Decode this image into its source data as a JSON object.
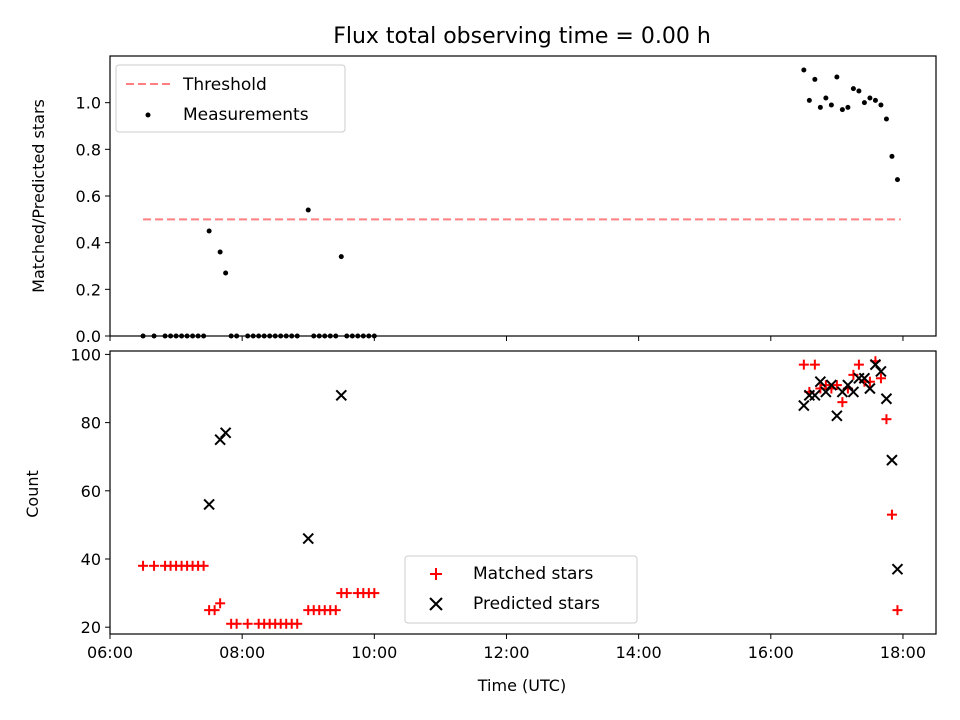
{
  "chart_data": [
    {
      "type": "scatter",
      "title": "Flux total observing time = 0.00 h",
      "xlabel": "",
      "ylabel": "Matched/Predicted stars",
      "xlim": [
        "06:00",
        "18:30"
      ],
      "ylim": [
        0,
        1.2
      ],
      "yticks": [
        "0.0",
        "0.2",
        "0.4",
        "0.6",
        "0.8",
        "1.0"
      ],
      "yticks_values": [
        0,
        0.2,
        0.4,
        0.6,
        0.8,
        1.0
      ],
      "legend_position": "top-left",
      "threshold": {
        "name": "Threshold",
        "value": 0.5,
        "x": [
          "06:30",
          "17:58"
        ],
        "color": "#ff8080",
        "style": "dashed"
      },
      "series": [
        {
          "name": "Measurements",
          "marker": "dot",
          "color": "#000000",
          "points": [
            [
              "06:30",
              0.0
            ],
            [
              "06:40",
              0.0
            ],
            [
              "06:50",
              0.0
            ],
            [
              "06:55",
              0.0
            ],
            [
              "07:00",
              0.0
            ],
            [
              "07:05",
              0.0
            ],
            [
              "07:10",
              0.0
            ],
            [
              "07:15",
              0.0
            ],
            [
              "07:20",
              0.0
            ],
            [
              "07:25",
              0.0
            ],
            [
              "07:30",
              0.45
            ],
            [
              "07:40",
              0.36
            ],
            [
              "07:45",
              0.27
            ],
            [
              "07:50",
              0.0
            ],
            [
              "07:55",
              0.0
            ],
            [
              "08:05",
              0.0
            ],
            [
              "08:10",
              0.0
            ],
            [
              "08:15",
              0.0
            ],
            [
              "08:20",
              0.0
            ],
            [
              "08:25",
              0.0
            ],
            [
              "08:30",
              0.0
            ],
            [
              "08:35",
              0.0
            ],
            [
              "08:40",
              0.0
            ],
            [
              "08:45",
              0.0
            ],
            [
              "08:50",
              0.0
            ],
            [
              "09:00",
              0.54
            ],
            [
              "09:05",
              0.0
            ],
            [
              "09:10",
              0.0
            ],
            [
              "09:15",
              0.0
            ],
            [
              "09:20",
              0.0
            ],
            [
              "09:25",
              0.0
            ],
            [
              "09:30",
              0.34
            ],
            [
              "09:35",
              0.0
            ],
            [
              "09:40",
              0.0
            ],
            [
              "09:45",
              0.0
            ],
            [
              "09:50",
              0.0
            ],
            [
              "09:55",
              0.0
            ],
            [
              "10:00",
              0.0
            ],
            [
              "16:30",
              1.14
            ],
            [
              "16:35",
              1.01
            ],
            [
              "16:40",
              1.1
            ],
            [
              "16:45",
              0.98
            ],
            [
              "16:50",
              1.02
            ],
            [
              "16:55",
              0.99
            ],
            [
              "17:00",
              1.11
            ],
            [
              "17:05",
              0.97
            ],
            [
              "17:10",
              0.98
            ],
            [
              "17:15",
              1.06
            ],
            [
              "17:20",
              1.05
            ],
            [
              "17:25",
              1.0
            ],
            [
              "17:30",
              1.02
            ],
            [
              "17:35",
              1.01
            ],
            [
              "17:40",
              0.99
            ],
            [
              "17:45",
              0.93
            ],
            [
              "17:50",
              0.77
            ],
            [
              "17:55",
              0.67
            ]
          ]
        }
      ]
    },
    {
      "type": "scatter",
      "title": "",
      "xlabel": "Time (UTC)",
      "ylabel": "Count",
      "xlim": [
        "06:00",
        "18:30"
      ],
      "ylim": [
        18,
        101
      ],
      "xticks": [
        "06:00",
        "08:00",
        "10:00",
        "12:00",
        "14:00",
        "16:00",
        "18:00"
      ],
      "yticks": [
        "20",
        "40",
        "60",
        "80",
        "100"
      ],
      "yticks_values": [
        20,
        40,
        60,
        80,
        100
      ],
      "legend_position": "lower-center",
      "series": [
        {
          "name": "Matched stars",
          "marker": "plus",
          "color": "#ff0000",
          "points": [
            [
              "06:30",
              38
            ],
            [
              "06:40",
              38
            ],
            [
              "06:50",
              38
            ],
            [
              "06:55",
              38
            ],
            [
              "07:00",
              38
            ],
            [
              "07:05",
              38
            ],
            [
              "07:10",
              38
            ],
            [
              "07:15",
              38
            ],
            [
              "07:20",
              38
            ],
            [
              "07:25",
              38
            ],
            [
              "07:30",
              25
            ],
            [
              "07:35",
              25
            ],
            [
              "07:40",
              27
            ],
            [
              "07:50",
              21
            ],
            [
              "07:55",
              21
            ],
            [
              "08:05",
              21
            ],
            [
              "08:15",
              21
            ],
            [
              "08:20",
              21
            ],
            [
              "08:25",
              21
            ],
            [
              "08:30",
              21
            ],
            [
              "08:35",
              21
            ],
            [
              "08:40",
              21
            ],
            [
              "08:45",
              21
            ],
            [
              "08:50",
              21
            ],
            [
              "09:00",
              25
            ],
            [
              "09:05",
              25
            ],
            [
              "09:10",
              25
            ],
            [
              "09:15",
              25
            ],
            [
              "09:20",
              25
            ],
            [
              "09:25",
              25
            ],
            [
              "09:30",
              30
            ],
            [
              "09:35",
              30
            ],
            [
              "09:45",
              30
            ],
            [
              "09:50",
              30
            ],
            [
              "09:55",
              30
            ],
            [
              "10:00",
              30
            ],
            [
              "16:30",
              97
            ],
            [
              "16:35",
              89
            ],
            [
              "16:40",
              97
            ],
            [
              "16:45",
              90
            ],
            [
              "16:50",
              91
            ],
            [
              "16:55",
              90
            ],
            [
              "17:00",
              91
            ],
            [
              "17:05",
              86
            ],
            [
              "17:10",
              90
            ],
            [
              "17:15",
              94
            ],
            [
              "17:20",
              97
            ],
            [
              "17:25",
              92
            ],
            [
              "17:30",
              92
            ],
            [
              "17:35",
              98
            ],
            [
              "17:40",
              93
            ],
            [
              "17:45",
              81
            ],
            [
              "17:50",
              53
            ],
            [
              "17:55",
              25
            ]
          ]
        },
        {
          "name": "Predicted stars",
          "marker": "x",
          "color": "#000000",
          "points": [
            [
              "07:30",
              56
            ],
            [
              "07:40",
              75
            ],
            [
              "07:45",
              77
            ],
            [
              "09:00",
              46
            ],
            [
              "09:30",
              88
            ],
            [
              "16:30",
              85
            ],
            [
              "16:35",
              88
            ],
            [
              "16:40",
              88
            ],
            [
              "16:45",
              92
            ],
            [
              "16:50",
              89
            ],
            [
              "16:55",
              91
            ],
            [
              "17:00",
              82
            ],
            [
              "17:05",
              89
            ],
            [
              "17:10",
              91
            ],
            [
              "17:15",
              89
            ],
            [
              "17:20",
              93
            ],
            [
              "17:25",
              93
            ],
            [
              "17:30",
              90
            ],
            [
              "17:35",
              97
            ],
            [
              "17:40",
              95
            ],
            [
              "17:45",
              87
            ],
            [
              "17:50",
              69
            ],
            [
              "17:55",
              37
            ]
          ]
        }
      ]
    }
  ]
}
